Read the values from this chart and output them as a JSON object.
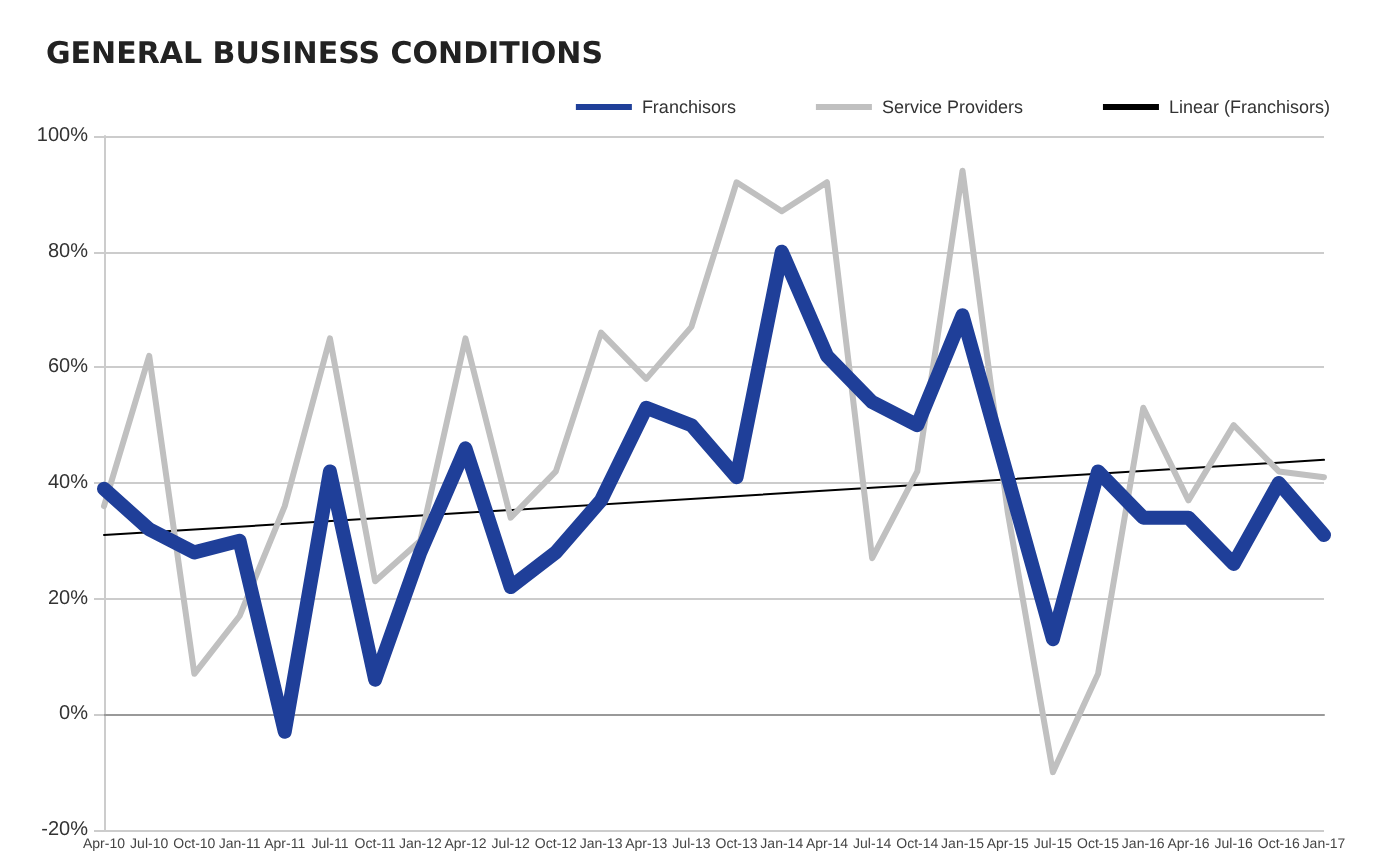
{
  "chart_data": {
    "type": "line",
    "title": "GENERAL BUSINESS CONDITIONS",
    "categories": [
      "Apr-10",
      "Jul-10",
      "Oct-10",
      "Jan-11",
      "Apr-11",
      "Jul-11",
      "Oct-11",
      "Jan-12",
      "Apr-12",
      "Jul-12",
      "Oct-12",
      "Jan-13",
      "Apr-13",
      "Jul-13",
      "Oct-13",
      "Jan-14",
      "Apr-14",
      "Jul-14",
      "Oct-14",
      "Jan-15",
      "Apr-15",
      "Jul-15",
      "Oct-15",
      "Jan-16",
      "Apr-16",
      "Jul-16",
      "Oct-16",
      "Jan-17"
    ],
    "series": [
      {
        "name": "Franchisors",
        "color": "#1f3f99",
        "values": [
          39,
          32,
          28,
          30,
          -3,
          42,
          6,
          28,
          46,
          22,
          28,
          37,
          53,
          50,
          41,
          80,
          62,
          54,
          50,
          69,
          41,
          13,
          42,
          34,
          34,
          26,
          40,
          31
        ]
      },
      {
        "name": "Service Providers",
        "color": "#c0c0c0",
        "values": [
          36,
          62,
          7,
          17,
          36,
          65,
          23,
          30,
          65,
          34,
          42,
          66,
          58,
          67,
          92,
          87,
          92,
          27,
          42,
          94,
          35,
          -10,
          7,
          53,
          37,
          50,
          42,
          41
        ]
      },
      {
        "name": "Linear (Franchisors)",
        "color": "#000000",
        "x": [
          "Apr-10",
          "Jan-17"
        ],
        "values": [
          31,
          44
        ]
      }
    ],
    "ylim": [
      -20,
      100
    ],
    "yticks": [
      {
        "value": -20,
        "label": "-20%"
      },
      {
        "value": 0,
        "label": "0%"
      },
      {
        "value": 20,
        "label": "20%"
      },
      {
        "value": 40,
        "label": "40%"
      },
      {
        "value": 60,
        "label": "60%"
      },
      {
        "value": 80,
        "label": "80%"
      },
      {
        "value": 100,
        "label": "100%"
      }
    ],
    "grid": "y",
    "legend": "top right",
    "marker": "none",
    "line_style": "solid"
  }
}
